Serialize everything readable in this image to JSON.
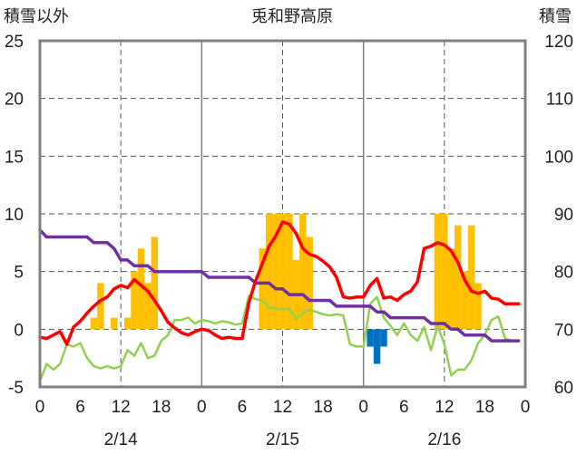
{
  "title": "兎和野高原",
  "left_axis_title": "積雪以外",
  "right_axis_title": "積雪",
  "chart_data": {
    "type": "bar+line",
    "title": "兎和野高原",
    "left_axis": {
      "label": "積雪以外",
      "ylim": [
        -5,
        25
      ],
      "ticks": [
        -5,
        0,
        5,
        10,
        15,
        20,
        25
      ]
    },
    "right_axis": {
      "label": "積雪",
      "ylim": [
        60,
        120
      ],
      "ticks": [
        60,
        70,
        80,
        90,
        100,
        110,
        120
      ]
    },
    "x_axis": {
      "xlim": [
        0,
        72
      ],
      "tick_hours": [
        0,
        6,
        12,
        18,
        24,
        30,
        36,
        42,
        48,
        54,
        60,
        66,
        72
      ],
      "tick_labels": [
        "0",
        "6",
        "12",
        "18",
        "0",
        "6",
        "12",
        "18",
        "0",
        "6",
        "12",
        "18",
        "0"
      ],
      "day_labels": [
        {
          "hour": 12,
          "label": "2/14"
        },
        {
          "hour": 36,
          "label": "2/15"
        },
        {
          "hour": 60,
          "label": "2/16"
        }
      ],
      "day_boundaries": [
        24,
        48
      ],
      "dashed_gridlines": [
        12,
        36,
        60
      ]
    },
    "grid": {
      "horizontal": "dashed",
      "vertical": "dashed"
    },
    "colors": {
      "precip_positive": "#ffc000",
      "precip_negative": "#0070c0",
      "red_series": "#ff0000",
      "green_series": "#92d050",
      "purple_series": "#7030a0",
      "frame": "#808080"
    },
    "bars": {
      "axis": "left",
      "x": [
        8,
        9,
        11,
        13,
        14,
        15,
        16,
        17,
        33,
        34,
        35,
        36,
        37,
        38,
        39,
        40,
        41,
        42,
        49,
        50,
        51,
        59,
        60,
        61,
        62,
        63,
        64,
        65
      ],
      "values": [
        1,
        4,
        1,
        1,
        5,
        7,
        4,
        8,
        7,
        10,
        10,
        10,
        10,
        6,
        10,
        8,
        0,
        0,
        -1.5,
        -3,
        -1.5,
        10,
        10,
        7,
        9,
        5,
        9,
        4
      ]
    },
    "series": [
      {
        "axis": "left",
        "color": "#ff0000",
        "x": [
          0,
          1,
          2,
          3,
          4,
          5,
          6,
          7,
          8,
          9,
          10,
          11,
          12,
          13,
          14,
          15,
          16,
          17,
          18,
          19,
          20,
          21,
          22,
          23,
          24,
          25,
          26,
          27,
          28,
          29,
          30,
          31,
          32,
          33,
          34,
          35,
          36,
          37,
          38,
          39,
          40,
          41,
          42,
          43,
          44,
          45,
          46,
          47,
          48,
          49,
          50,
          51,
          52,
          53,
          54,
          55,
          56,
          57,
          58,
          59,
          60,
          61,
          62,
          63,
          64,
          65,
          66,
          67,
          68,
          69,
          70,
          71
        ],
        "values": [
          -0.7,
          -0.8,
          -0.5,
          -0.2,
          -1.3,
          0.2,
          0.7,
          1.4,
          2,
          2.5,
          2.8,
          3.5,
          3.8,
          3.6,
          4.3,
          3.8,
          3.3,
          2.5,
          1.6,
          0.6,
          0.1,
          -0.3,
          -0.5,
          -0.2,
          0,
          -0.1,
          -0.5,
          -0.8,
          -0.7,
          -0.8,
          -0.8,
          2.3,
          4.2,
          5.7,
          7.2,
          8.1,
          9.3,
          9.1,
          8.3,
          7,
          6.5,
          6.3,
          5.9,
          5.4,
          4.5,
          2.8,
          2.7,
          2.8,
          2.8,
          3.8,
          4.4,
          2.7,
          2.8,
          2.5,
          3,
          3.3,
          4.1,
          7,
          7.2,
          7.5,
          7.3,
          6.8,
          5.8,
          4.3,
          3.3,
          3.1,
          3.3,
          2.7,
          2.6,
          2.2,
          2.2,
          2.2
        ]
      },
      {
        "axis": "left",
        "color": "#92d050",
        "x": [
          0,
          1,
          2,
          3,
          4,
          5,
          6,
          7,
          8,
          9,
          10,
          11,
          12,
          13,
          14,
          15,
          16,
          17,
          18,
          19,
          20,
          21,
          22,
          23,
          24,
          25,
          26,
          27,
          28,
          29,
          30,
          31,
          32,
          33,
          34,
          35,
          36,
          37,
          38,
          39,
          40,
          41,
          42,
          43,
          44,
          45,
          46,
          47,
          48,
          49,
          50,
          51,
          52,
          53,
          54,
          55,
          56,
          57,
          58,
          59,
          60,
          61,
          62,
          63,
          64,
          65,
          66,
          67,
          68,
          69,
          70,
          71
        ],
        "values": [
          -4.5,
          -3,
          -3.5,
          -3,
          -1.3,
          -1.5,
          -1.2,
          -2.5,
          -3.2,
          -3.4,
          -3.2,
          -3.4,
          -3.2,
          -1.8,
          -2.3,
          -1.2,
          -2.5,
          -2.3,
          -1,
          -0.5,
          0.8,
          0.8,
          1,
          0.5,
          0.8,
          0.7,
          0.5,
          0.7,
          0.6,
          0.4,
          0.5,
          2.9,
          2.6,
          2.5,
          1.9,
          1.8,
          1.7,
          1.8,
          0.9,
          1.4,
          1.7,
          1.5,
          1.3,
          1.2,
          1.3,
          1.2,
          -1.3,
          -1.5,
          -1.5,
          2.2,
          2.8,
          1,
          0.3,
          -0.5,
          0.5,
          -0.5,
          -1,
          0.2,
          -1.8,
          0.3,
          -1.3,
          -4,
          -3.5,
          -3.5,
          -2.7,
          -1.2,
          -0.5,
          0.8,
          1.1,
          -0.8,
          -1,
          -1
        ]
      },
      {
        "axis": "left",
        "color": "#7030a0",
        "x": [
          0,
          1,
          2,
          3,
          4,
          5,
          6,
          7,
          8,
          9,
          10,
          11,
          12,
          13,
          14,
          15,
          16,
          17,
          18,
          19,
          20,
          21,
          22,
          23,
          24,
          25,
          26,
          27,
          28,
          29,
          30,
          31,
          32,
          33,
          34,
          35,
          36,
          37,
          38,
          39,
          40,
          41,
          42,
          43,
          44,
          45,
          46,
          47,
          48,
          49,
          50,
          51,
          52,
          53,
          54,
          55,
          56,
          57,
          58,
          59,
          60,
          61,
          62,
          63,
          64,
          65,
          66,
          67,
          68,
          69,
          70,
          71
        ],
        "values": [
          8.6,
          8,
          8,
          8,
          8,
          8,
          8,
          8,
          7.5,
          7.5,
          7.5,
          7,
          6,
          6,
          5.5,
          5.5,
          5.5,
          5,
          5,
          5,
          5,
          5,
          5,
          5,
          5,
          4.5,
          4.5,
          4.5,
          4.5,
          4.5,
          4.5,
          4.5,
          4,
          4,
          4,
          3.5,
          3.5,
          3,
          3,
          3,
          2.5,
          2.5,
          2.5,
          2.5,
          2,
          2,
          2,
          2,
          2,
          2,
          1.5,
          1.5,
          1,
          1,
          1,
          1,
          1,
          1,
          0.5,
          0.5,
          0.5,
          0,
          0,
          -0.5,
          -0.5,
          -0.5,
          -0.5,
          -1,
          -1,
          -1,
          -1,
          -1
        ]
      }
    ]
  }
}
